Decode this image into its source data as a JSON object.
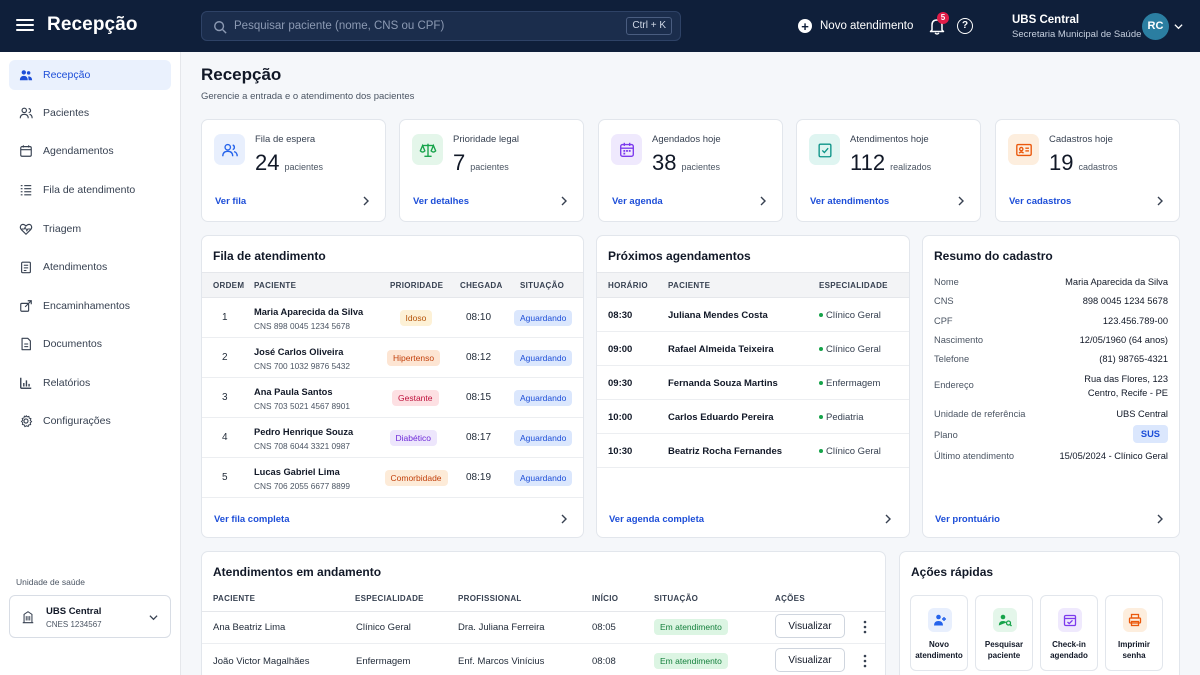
{
  "header": {
    "title": "Recepção",
    "search_placeholder": "Pesquisar paciente (nome, CNS ou CPF)",
    "shortcut": "Ctrl + K",
    "new_label": "Novo atendimento",
    "notif_count": "5",
    "help": "?",
    "unit": "UBS Central",
    "org": "Secretaria Municipal de Saúde",
    "avatar": "RC"
  },
  "sidebar": {
    "items": [
      {
        "label": "Recepção",
        "icon": "users-icon"
      },
      {
        "label": "Pacientes",
        "icon": "user-group-icon"
      },
      {
        "label": "Agendamentos",
        "icon": "calendar-icon"
      },
      {
        "label": "Fila de atendimento",
        "icon": "list-icon"
      },
      {
        "label": "Triagem",
        "icon": "heart-pulse-icon"
      },
      {
        "label": "Atendimentos",
        "icon": "clipboard-icon"
      },
      {
        "label": "Encaminhamentos",
        "icon": "forward-icon"
      },
      {
        "label": "Documentos",
        "icon": "document-icon"
      },
      {
        "label": "Relatórios",
        "icon": "bar-chart-icon"
      },
      {
        "label": "Configurações",
        "icon": "gear-icon"
      }
    ],
    "unit_label": "Unidade de saúde",
    "unit_name": "UBS Central",
    "unit_cnes": "CNES 1234567"
  },
  "page": {
    "title": "Recepção",
    "subtitle": "Gerencie a entrada e o atendimento dos pacientes"
  },
  "stats": [
    {
      "label": "Fila de espera",
      "value": "24",
      "unit": "pacientes",
      "link": "Ver fila",
      "color": "#2563eb",
      "bg": "#e8effd"
    },
    {
      "label": "Prioridade legal",
      "value": "7",
      "unit": "pacientes",
      "link": "Ver detalhes",
      "color": "#16a34a",
      "bg": "#e4f6ea"
    },
    {
      "label": "Agendados hoje",
      "value": "38",
      "unit": "pacientes",
      "link": "Ver agenda",
      "color": "#7c3aed",
      "bg": "#efe9fd"
    },
    {
      "label": "Atendimentos hoje",
      "value": "112",
      "unit": "realizados",
      "link": "Ver atendimentos",
      "color": "#0d9488",
      "bg": "#dff5f1"
    },
    {
      "label": "Cadastros hoje",
      "value": "19",
      "unit": "cadastros",
      "link": "Ver cadastros",
      "color": "#ea580c",
      "bg": "#fdeede"
    }
  ],
  "queue": {
    "title": "Fila de atendimento",
    "columns": [
      "ORDEM",
      "PACIENTE",
      "PRIORIDADE",
      "CHEGADA",
      "SITUAÇÃO"
    ],
    "rows": [
      {
        "order": "1",
        "name": "Maria Aparecida da Silva",
        "cns": "CNS 898 0045 1234 5678",
        "priority": "Idoso",
        "pcolor": "#b45309",
        "pbg": "#fdf1d6",
        "time": "08:10",
        "status": "Aguardando"
      },
      {
        "order": "2",
        "name": "José Carlos Oliveira",
        "cns": "CNS 700 1032 9876 5432",
        "priority": "Hipertenso",
        "pcolor": "#c2410c",
        "pbg": "#fde5d3",
        "time": "08:12",
        "status": "Aguardando"
      },
      {
        "order": "3",
        "name": "Ana Paula Santos",
        "cns": "CNS 703 5021 4567 8901",
        "priority": "Gestante",
        "pcolor": "#be123c",
        "pbg": "#fde0e3",
        "time": "08:15",
        "status": "Aguardando"
      },
      {
        "order": "4",
        "name": "Pedro Henrique Souza",
        "cns": "CNS 708 6044 3321 0987",
        "priority": "Diabético",
        "pcolor": "#6d28d9",
        "pbg": "#ede6fc",
        "time": "08:17",
        "status": "Aguardando"
      },
      {
        "order": "5",
        "name": "Lucas Gabriel Lima",
        "cns": "CNS 706 2055 6677 8899",
        "priority": "Comorbidade",
        "pcolor": "#c2410c",
        "pbg": "#fdebd8",
        "time": "08:19",
        "status": "Aguardando"
      }
    ],
    "link": "Ver fila completa"
  },
  "appointments": {
    "title": "Próximos agendamentos",
    "columns": [
      "HORÁRIO",
      "PACIENTE",
      "ESPECIALIDADE"
    ],
    "rows": [
      {
        "time": "08:30",
        "name": "Juliana Mendes Costa",
        "spec": "Clínico Geral"
      },
      {
        "time": "09:00",
        "name": "Rafael Almeida Teixeira",
        "spec": "Clínico Geral"
      },
      {
        "time": "09:30",
        "name": "Fernanda Souza Martins",
        "spec": "Enfermagem"
      },
      {
        "time": "10:00",
        "name": "Carlos Eduardo Pereira",
        "spec": "Pediatria"
      },
      {
        "time": "10:30",
        "name": "Beatriz Rocha Fernandes",
        "spec": "Clínico Geral"
      }
    ],
    "link": "Ver agenda completa"
  },
  "summary": {
    "title": "Resumo do cadastro",
    "fields": [
      {
        "k": "Nome",
        "v": "Maria Aparecida da Silva"
      },
      {
        "k": "CNS",
        "v": "898 0045 1234 5678"
      },
      {
        "k": "CPF",
        "v": "123.456.789-00"
      },
      {
        "k": "Nascimento",
        "v": "12/05/1960 (64 anos)"
      },
      {
        "k": "Telefone",
        "v": "(81) 98765-4321"
      },
      {
        "k": "Endereço",
        "v": "Rua das Flores, 123",
        "v2": "Centro, Recife - PE"
      },
      {
        "k": "Unidade de referência",
        "v": "UBS Central"
      },
      {
        "k": "Plano",
        "v": "SUS"
      },
      {
        "k": "Último atendimento",
        "v": "15/05/2024 - Clínico Geral"
      }
    ],
    "link": "Ver prontuário"
  },
  "ongoing": {
    "title": "Atendimentos em andamento",
    "columns": [
      "PACIENTE",
      "ESPECIALIDADE",
      "PROFISSIONAL",
      "INÍCIO",
      "SITUAÇÃO",
      "AÇÕES"
    ],
    "rows": [
      {
        "name": "Ana Beatriz Lima",
        "spec": "Clínico Geral",
        "prof": "Dra. Juliana Ferreira",
        "start": "08:05",
        "status": "Em atendimento",
        "action": "Visualizar"
      },
      {
        "name": "João Victor Magalhães",
        "spec": "Enfermagem",
        "prof": "Enf. Marcos Vinícius",
        "start": "08:08",
        "status": "Em atendimento",
        "action": "Visualizar"
      }
    ]
  },
  "quick": {
    "title": "Ações rápidas",
    "items": [
      {
        "l1": "Novo",
        "l2": "atendimento",
        "color": "#2563eb",
        "bg": "#e8effd"
      },
      {
        "l1": "Pesquisar",
        "l2": "paciente",
        "color": "#16a34a",
        "bg": "#e4f6ea"
      },
      {
        "l1": "Check-in",
        "l2": "agendado",
        "color": "#7c3aed",
        "bg": "#efe9fd"
      },
      {
        "l1": "Imprimir",
        "l2": "senha",
        "color": "#ea580c",
        "bg": "#fdeede"
      }
    ]
  }
}
